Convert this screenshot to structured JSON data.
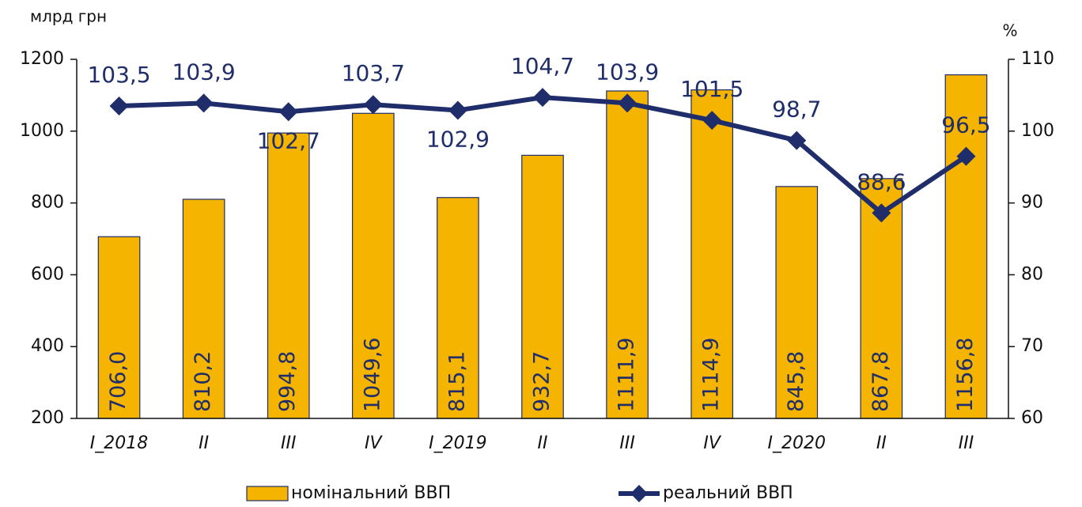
{
  "chart_data": {
    "type": "bar",
    "y_label": "млрд грн",
    "y2_label": "%",
    "categories": [
      "I_2018",
      "II",
      "III",
      "IV",
      "I_2019",
      "II",
      "III",
      "IV",
      "I_2020",
      "II",
      "III"
    ],
    "ylim": [
      200,
      1200
    ],
    "yticks": [
      200,
      400,
      600,
      800,
      1000,
      1200
    ],
    "y2lim": [
      60,
      110
    ],
    "y2ticks": [
      60,
      70,
      80,
      90,
      100,
      110
    ],
    "series": [
      {
        "name": "номінальний ВВП",
        "type": "bar",
        "color": "#f5b400",
        "values": [
          706.0,
          810.2,
          994.8,
          1049.6,
          815.1,
          932.7,
          1111.9,
          1114.9,
          845.8,
          867.8,
          1156.8
        ],
        "value_labels": [
          "706,0",
          "810,2",
          "994,8",
          "1049,6",
          "815,1",
          "932,7",
          "1111,9",
          "1114,9",
          "845,8",
          "867,8",
          "1156,8"
        ]
      },
      {
        "name": "реальний ВВП",
        "type": "line",
        "axis": "y2",
        "color": "#1f2d6b",
        "values": [
          103.5,
          103.9,
          102.7,
          103.7,
          102.9,
          104.7,
          103.9,
          101.5,
          98.7,
          88.6,
          96.5
        ],
        "value_labels": [
          "103,5",
          "103,9",
          "102,7",
          "103,7",
          "102,9",
          "104,7",
          "103,9",
          "101,5",
          "98,7",
          "88,6",
          "96,5"
        ]
      }
    ]
  }
}
